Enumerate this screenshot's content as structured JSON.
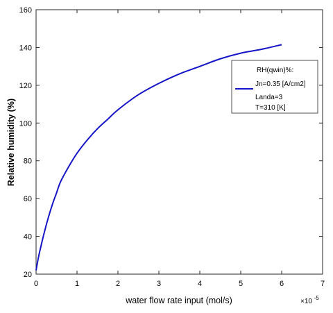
{
  "chart_data": {
    "type": "line",
    "title": "",
    "xlabel": "water flow rate input (mol/s)",
    "ylabel": "Relative humidity (%)",
    "x_exponent_label": "×10",
    "x_exponent_power": "-5",
    "xlim": [
      0,
      7
    ],
    "ylim": [
      20,
      160
    ],
    "x_ticks": [
      0,
      1,
      2,
      3,
      4,
      5,
      6,
      7
    ],
    "y_ticks": [
      20,
      40,
      60,
      80,
      100,
      120,
      140,
      160
    ],
    "grid": false,
    "legend_position": "top-right",
    "legend_lines": [
      "RH(qwin)%:",
      "Jn=0.35 [A/cm2]",
      "Landa=3",
      "T=310 [K]"
    ],
    "series": [
      {
        "name": "RH(qwin)%:",
        "color": "#1515c8",
        "x": [
          0,
          0.05,
          0.1,
          0.2,
          0.3,
          0.4,
          0.5,
          0.6,
          0.8,
          1.0,
          1.25,
          1.5,
          1.75,
          2.0,
          2.5,
          3.0,
          3.5,
          4.0,
          4.5,
          5.0,
          5.5,
          6.0
        ],
        "y": [
          22,
          28,
          33,
          42,
          50,
          57,
          63,
          69,
          77,
          84,
          91,
          97,
          102,
          107,
          115,
          121,
          126,
          130,
          134,
          137,
          139,
          141.5
        ]
      }
    ]
  }
}
